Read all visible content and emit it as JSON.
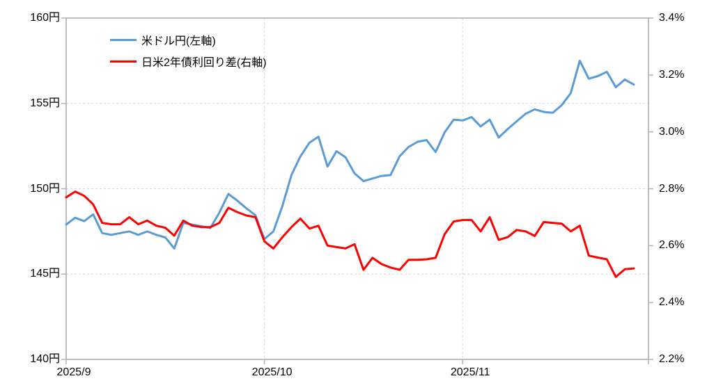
{
  "chart_data": {
    "type": "line",
    "title": "",
    "legend_position": "top-left-inside",
    "grid": "horizontal-and-month-verticals-dashed",
    "points_count": 64,
    "x_axis": {
      "ticks": [
        {
          "label": "2025/9",
          "index": 0
        },
        {
          "label": "2025/10",
          "index": 22
        },
        {
          "label": "2025/11",
          "index": 44
        }
      ],
      "gridline_tick_indices": [
        22,
        44
      ]
    },
    "y_axis_left": {
      "unit": "円",
      "min": 140,
      "max": 160,
      "ticks": [
        {
          "label": "160円",
          "value": 160
        },
        {
          "label": "155円",
          "value": 155
        },
        {
          "label": "150円",
          "value": 150
        },
        {
          "label": "145円",
          "value": 145
        },
        {
          "label": "140円",
          "value": 140
        }
      ],
      "gridline_values": [
        155,
        150,
        145
      ]
    },
    "y_axis_right": {
      "unit": "%",
      "min": 2.2,
      "max": 3.4,
      "ticks": [
        {
          "label": "3.4%",
          "value": 3.4
        },
        {
          "label": "3.2%",
          "value": 3.2
        },
        {
          "label": "3.0%",
          "value": 3.0
        },
        {
          "label": "2.8%",
          "value": 2.8
        },
        {
          "label": "2.6%",
          "value": 2.6
        },
        {
          "label": "2.4%",
          "value": 2.4
        },
        {
          "label": "2.2%",
          "value": 2.2
        }
      ]
    },
    "series": [
      {
        "name": "米ドル円(左軸)",
        "axis": "left",
        "color": "#5B9BD5",
        "values": [
          147.9,
          148.3,
          148.1,
          148.5,
          147.4,
          147.3,
          147.4,
          147.5,
          147.3,
          147.5,
          147.3,
          147.15,
          146.5,
          148.0,
          147.9,
          147.8,
          147.7,
          148.6,
          149.7,
          149.3,
          148.85,
          148.45,
          147.05,
          147.5,
          149.0,
          150.8,
          151.9,
          152.7,
          153.05,
          151.3,
          152.2,
          151.85,
          150.9,
          150.45,
          150.6,
          150.75,
          150.8,
          151.9,
          152.45,
          152.75,
          152.85,
          152.15,
          153.3,
          154.05,
          154.0,
          154.2,
          153.65,
          154.05,
          153.0,
          153.5,
          153.95,
          154.4,
          154.65,
          154.5,
          154.45,
          154.9,
          155.6,
          157.5,
          156.45,
          156.6,
          156.85,
          155.95,
          156.4,
          156.1
        ]
      },
      {
        "name": "日米2年債利回り差(右軸)",
        "axis": "right",
        "color": "#FF0000",
        "values": [
          2.77,
          2.79,
          2.775,
          2.745,
          2.68,
          2.675,
          2.675,
          2.7,
          2.675,
          2.688,
          2.67,
          2.663,
          2.635,
          2.688,
          2.67,
          2.665,
          2.665,
          2.68,
          2.733,
          2.718,
          2.706,
          2.7,
          2.615,
          2.59,
          2.63,
          2.665,
          2.695,
          2.66,
          2.67,
          2.6,
          2.595,
          2.59,
          2.605,
          2.515,
          2.557,
          2.535,
          2.523,
          2.515,
          2.55,
          2.55,
          2.552,
          2.557,
          2.64,
          2.685,
          2.69,
          2.69,
          2.65,
          2.7,
          2.62,
          2.63,
          2.655,
          2.65,
          2.634,
          2.683,
          2.68,
          2.677,
          2.65,
          2.67,
          2.565,
          2.558,
          2.552,
          2.49,
          2.517,
          2.52
        ]
      }
    ]
  },
  "colors": {
    "plot_border": "#b3b3b3",
    "gridline": "#d6d6d6",
    "background": "#ffffff",
    "text": "#000000"
  }
}
